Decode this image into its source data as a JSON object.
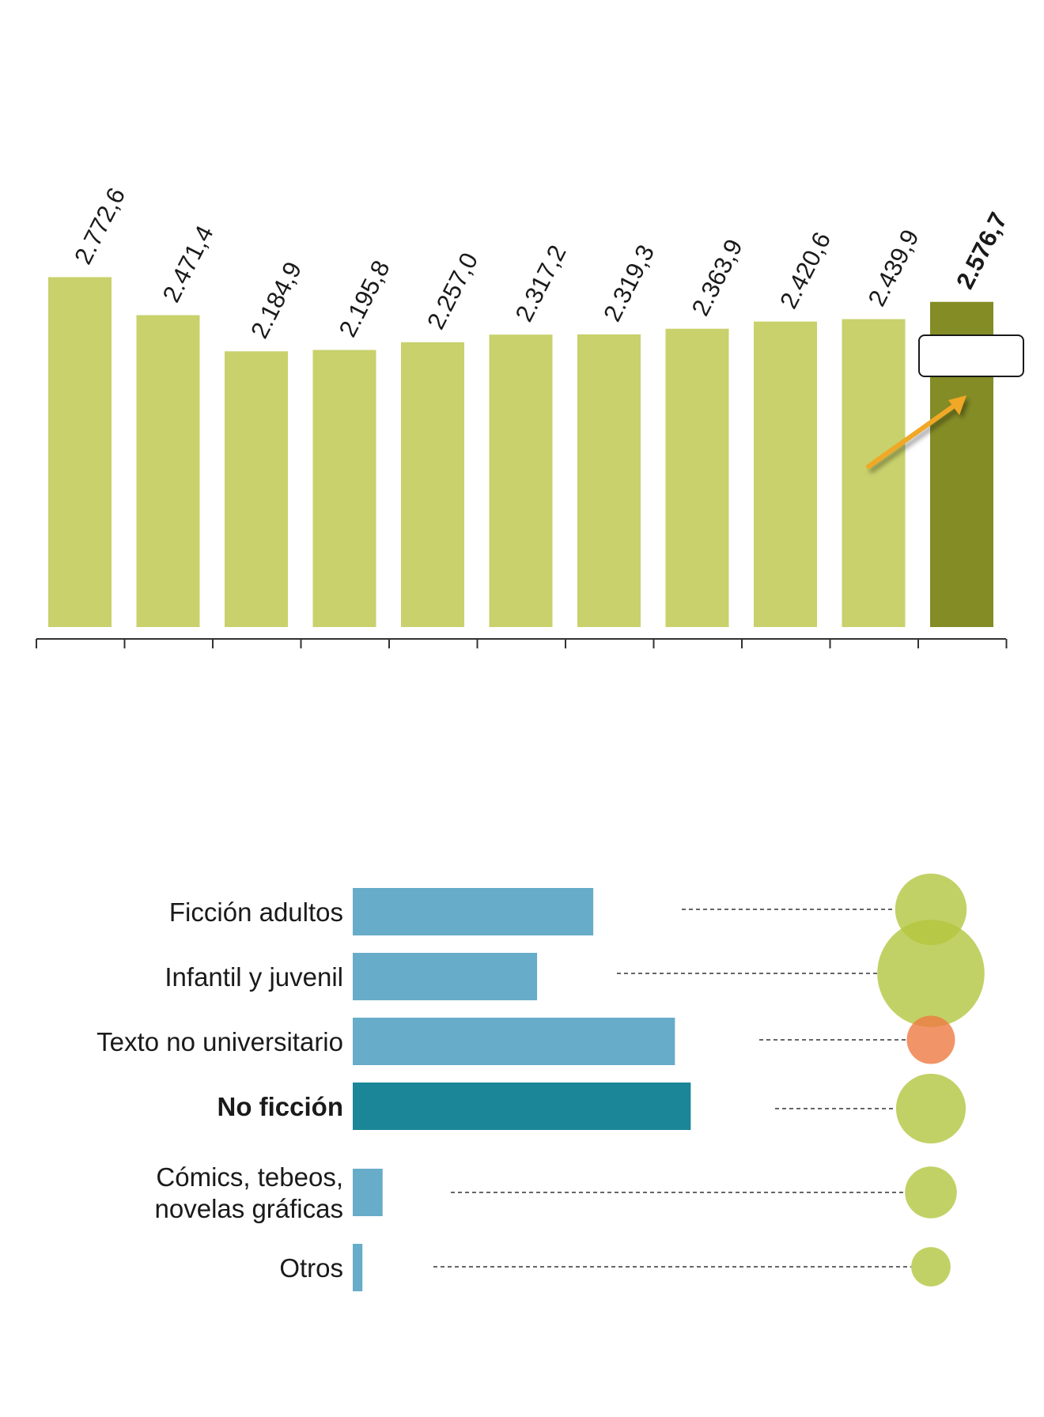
{
  "colors": {
    "bar": "#c8d16b",
    "bar_highlight": "#848c25",
    "hbar": "#67acc8",
    "hbar_highlight": "#1b8698",
    "bubble": "#b3c63e",
    "bubble_alt": "#ee7a43",
    "arrow": "#f0a826"
  },
  "chart_data": [
    {
      "type": "bar",
      "orientation": "vertical",
      "title": "",
      "xlabel": "",
      "ylabel": "",
      "ylim": [
        0,
        3000
      ],
      "grid": false,
      "categories": [
        "",
        "",
        "",
        "",
        "",
        "",
        "",
        "",
        "",
        "",
        ""
      ],
      "values": [
        2772.6,
        2471.4,
        2184.9,
        2195.8,
        2257.0,
        2317.2,
        2319.3,
        2363.9,
        2420.6,
        2439.9,
        2576.7
      ],
      "labels": [
        "2.772,6",
        "2.471,4",
        "2.184,9",
        "2.195,8",
        "2.257,0",
        "2.317,2",
        "2.319,3",
        "2.363,9",
        "2.420,6",
        "2.439,9",
        "2.576,7"
      ],
      "highlight_index": 10,
      "annotation": {
        "type": "arrow-with-empty-box",
        "target_index": 10
      }
    },
    {
      "type": "bar",
      "orientation": "horizontal",
      "title": "",
      "xlabel": "",
      "ylabel": "",
      "grid": false,
      "categories": [
        [
          "Ficción adultos"
        ],
        [
          "Infantil y juvenil"
        ],
        [
          "Texto no universitario"
        ],
        [
          "No ficción"
        ],
        [
          "Cómics, tebeos,",
          "novelas gráficas"
        ],
        [
          "Otros"
        ]
      ],
      "values": [
        27.4,
        21.0,
        36.7,
        38.5,
        3.4,
        1.1
      ],
      "highlight_index": 3,
      "bubbles": [
        {
          "size": 40,
          "color": "bubble"
        },
        {
          "size": 60,
          "color": "bubble"
        },
        {
          "size": 27,
          "color": "bubble_alt"
        },
        {
          "size": 39,
          "color": "bubble"
        },
        {
          "size": 29,
          "color": "bubble"
        },
        {
          "size": 22,
          "color": "bubble"
        }
      ]
    }
  ]
}
